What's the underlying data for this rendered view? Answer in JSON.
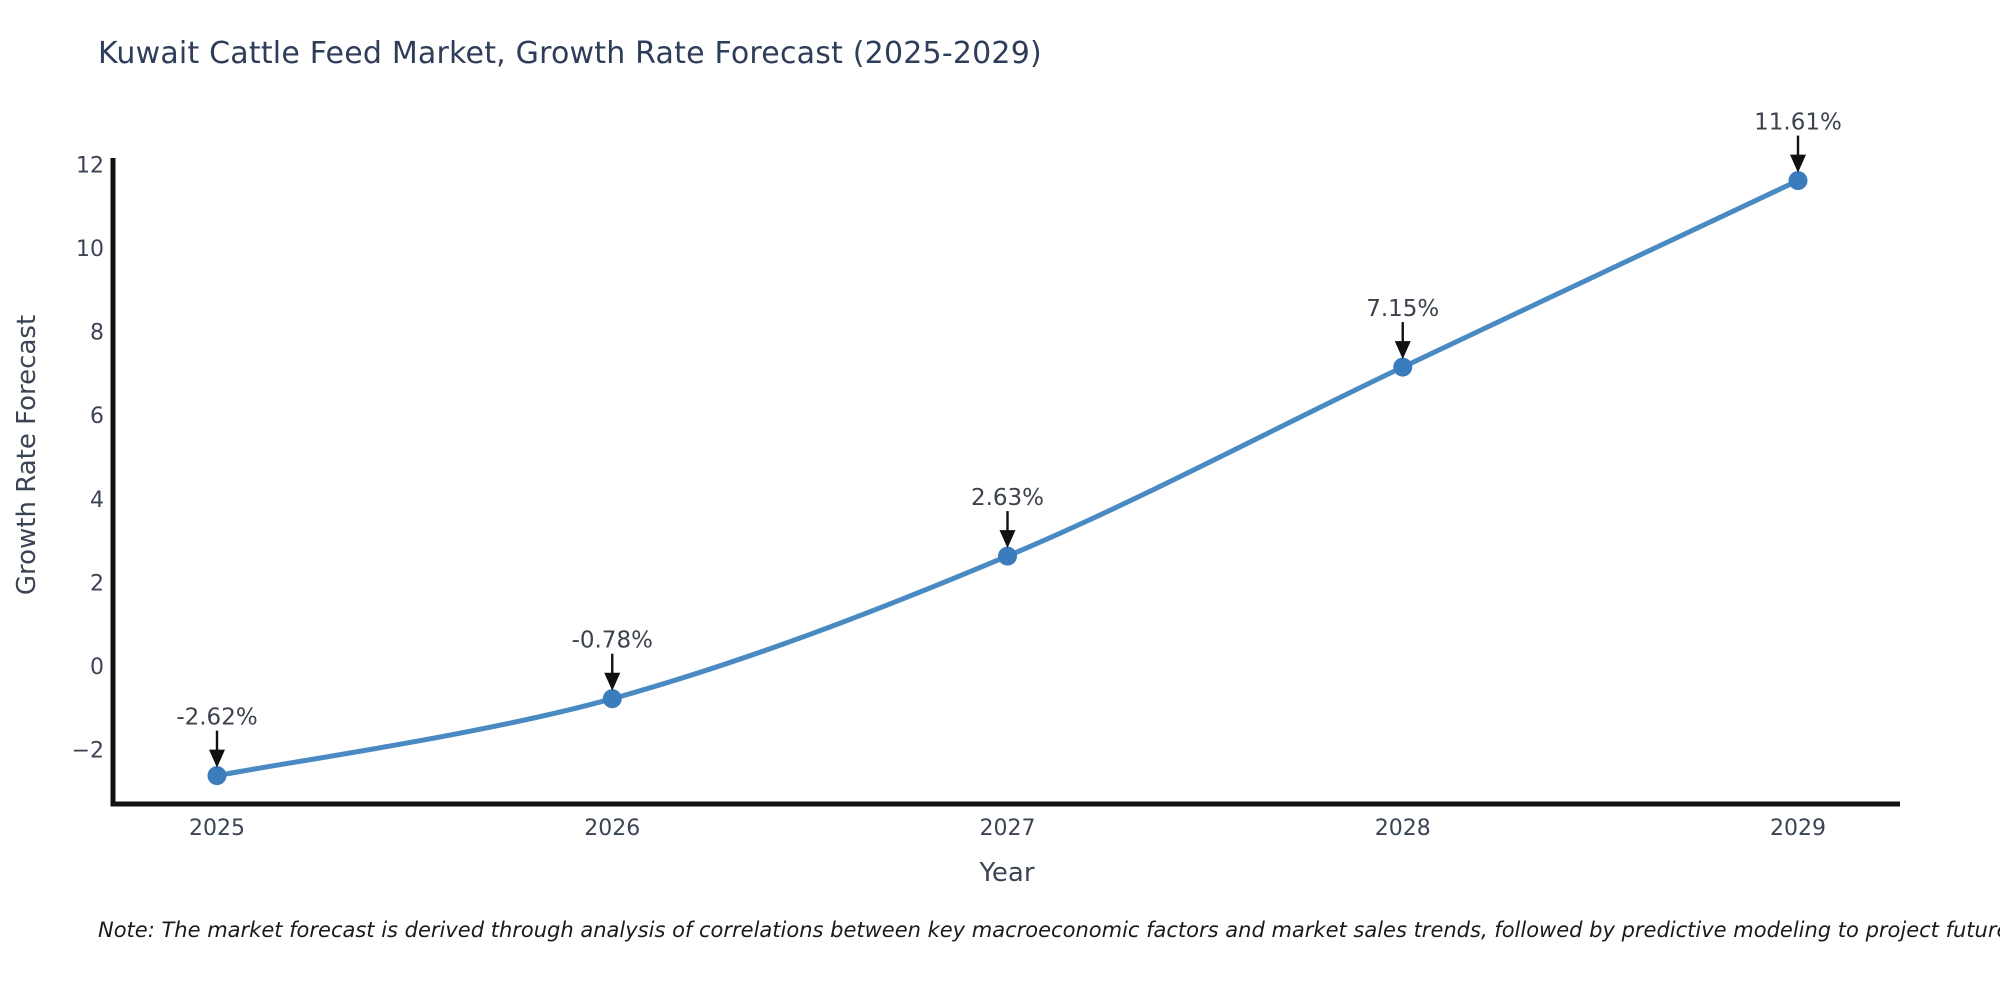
{
  "title": "Kuwait Cattle Feed Market, Growth Rate Forecast (2025-2029)",
  "note": "Note: The market forecast is derived through analysis of correlations between key macroeconomic factors and market sales trends, followed by predictive modeling to project future sales",
  "colors": {
    "line": "#4a8ac2",
    "marker": "#3a7cbc",
    "axis": "#111111",
    "title_text": "#2e3d59",
    "tick_text": "#3b4455",
    "point_label_text": "#3c424d",
    "arrow": "#111111",
    "background": "#ffffff"
  },
  "chart_data": {
    "type": "line",
    "title": "Kuwait Cattle Feed Market, Growth Rate Forecast (2025-2029)",
    "xlabel": "Year",
    "ylabel": "Growth Rate Forecast",
    "categories": [
      "2025",
      "2026",
      "2027",
      "2028",
      "2029"
    ],
    "values": [
      -2.62,
      -0.78,
      2.63,
      7.15,
      11.61
    ],
    "point_labels": [
      "-2.62%",
      "-0.78%",
      "2.63%",
      "7.15%",
      "11.61%"
    ],
    "series_name": "Growth Rate Forecast",
    "y_ticks": [
      -2,
      0,
      2,
      4,
      6,
      8,
      10,
      12
    ],
    "ylim": [
      -3.25,
      12.15
    ],
    "grid": false,
    "legend": "none",
    "marker": "circle",
    "line_style": "smooth",
    "annotations": "value labels with downward arrows above each point"
  }
}
